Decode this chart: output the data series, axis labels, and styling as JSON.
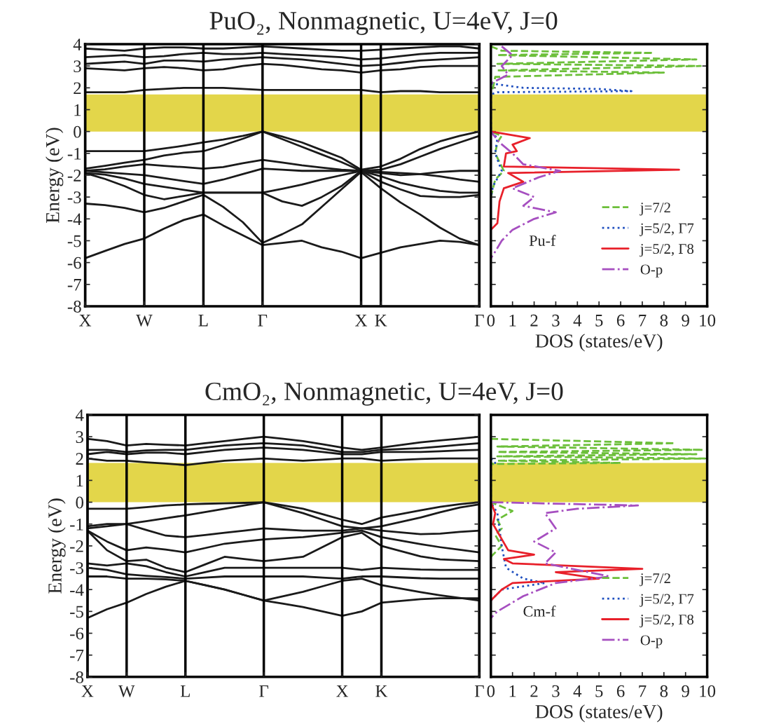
{
  "chart_data": [
    {
      "type": "line",
      "title": "PuO₂, Nonmagnetic, U=4eV, J=0",
      "ylabel": "Energy (eV)",
      "legend": false,
      "grid": "x",
      "categories": [
        "X",
        null,
        null,
        "W",
        null,
        null,
        "L",
        null,
        null,
        "Γ",
        null,
        null,
        null,
        null,
        "X",
        "K",
        null,
        null,
        null,
        null,
        "Γ"
      ],
      "ylim": [
        -8,
        4
      ],
      "yticks": [
        -8,
        -7,
        -6,
        -5,
        -4,
        -3,
        -2,
        -1,
        0,
        1,
        2,
        3,
        4
      ],
      "bands": [
        {
          "axis": "y",
          "from": 0,
          "to": 1.7,
          "color": "#e3d64a"
        }
      ],
      "series": [
        {
          "color": "#1a1a1a",
          "values": [
            -0.9,
            -0.9,
            -0.9,
            -0.9,
            -0.78,
            -0.65,
            -0.5,
            -0.37,
            -0.2,
            0,
            -0.23,
            -0.5,
            -0.85,
            -1.2,
            -1.75,
            -1.6,
            -1.25,
            -0.8,
            -0.45,
            -0.2,
            0
          ]
        },
        {
          "color": "#1a1a1a",
          "values": [
            -1.7,
            -1.57,
            -1.43,
            -1.3,
            -1.1,
            -0.97,
            -0.9,
            -0.63,
            -0.33,
            0,
            -0.35,
            -0.7,
            -1.05,
            -1.4,
            -1.8,
            -1.75,
            -1.5,
            -1.15,
            -0.8,
            -0.5,
            -0.2
          ]
        },
        {
          "color": "#1a1a1a",
          "values": [
            -1.8,
            -1.73,
            -1.6,
            -1.5,
            -1.57,
            -1.63,
            -1.7,
            -1.63,
            -1.45,
            -1.3,
            -1.42,
            -1.55,
            -1.65,
            -1.75,
            -1.8,
            -1.9,
            -2.0,
            -1.95,
            -1.85,
            -1.8,
            -1.8
          ]
        },
        {
          "color": "#1a1a1a",
          "values": [
            -1.8,
            -1.87,
            -1.93,
            -2.0,
            -2.13,
            -2.27,
            -2.4,
            -2.2,
            -1.95,
            -1.7,
            -1.75,
            -1.8,
            -1.8,
            -1.8,
            -1.8,
            -1.85,
            -1.9,
            -1.95,
            -2.05,
            -2.2,
            -2.3
          ]
        },
        {
          "color": "#1a1a1a",
          "values": [
            -1.9,
            -1.97,
            -2.15,
            -2.4,
            -2.53,
            -2.67,
            -2.8,
            -2.8,
            -2.8,
            -2.8,
            -2.62,
            -2.43,
            -2.2,
            -2.0,
            -1.8,
            -2.05,
            -2.35,
            -2.55,
            -2.72,
            -2.8,
            -2.8
          ]
        },
        {
          "color": "#1a1a1a",
          "values": [
            -1.9,
            -2.17,
            -2.5,
            -2.9,
            -3.1,
            -2.95,
            -2.8,
            -2.8,
            -2.8,
            -2.8,
            -3.2,
            -3.4,
            -3.0,
            -2.5,
            -1.8,
            -2.3,
            -2.65,
            -2.95,
            -3.0,
            -3.0,
            -2.9
          ]
        },
        {
          "color": "#1a1a1a",
          "values": [
            -3.3,
            -3.37,
            -3.5,
            -3.7,
            -3.5,
            -3.2,
            -2.9,
            -3.45,
            -4.15,
            -5.1,
            -4.7,
            -4.25,
            -3.45,
            -2.65,
            -1.85,
            -2.6,
            -3.25,
            -3.8,
            -4.4,
            -4.9,
            -5.2
          ]
        },
        {
          "color": "#1a1a1a",
          "values": [
            -5.8,
            -5.47,
            -5.15,
            -4.9,
            -4.45,
            -4.05,
            -3.8,
            -4.3,
            -4.75,
            -5.2,
            -5.1,
            -5.0,
            -5.3,
            -5.5,
            -5.8,
            -5.55,
            -5.3,
            -5.15,
            -5.0,
            -5.05,
            -5.2
          ]
        },
        {
          "color": "#1a1a1a",
          "values": [
            1.8,
            1.8,
            1.8,
            1.9,
            1.95,
            2.0,
            2.0,
            2.0,
            1.95,
            1.9,
            1.9,
            1.9,
            1.9,
            1.9,
            1.9,
            1.8,
            1.85,
            1.85,
            1.8,
            1.8,
            1.8
          ]
        },
        {
          "color": "#1a1a1a",
          "values": [
            2.9,
            2.85,
            2.8,
            2.9,
            2.95,
            2.9,
            2.8,
            2.85,
            3.0,
            3.1,
            3.05,
            2.95,
            2.85,
            2.8,
            2.7,
            2.8,
            2.85,
            2.95,
            3.0,
            3.0,
            3.0
          ]
        },
        {
          "color": "#1a1a1a",
          "values": [
            3.1,
            3.15,
            3.2,
            3.1,
            3.25,
            3.25,
            3.2,
            3.3,
            3.35,
            3.4,
            3.35,
            3.3,
            3.2,
            3.1,
            3.0,
            3.05,
            3.15,
            3.25,
            3.3,
            3.35,
            3.4
          ]
        },
        {
          "color": "#1a1a1a",
          "values": [
            3.4,
            3.45,
            3.5,
            3.4,
            3.45,
            3.55,
            3.6,
            3.55,
            3.55,
            3.6,
            3.55,
            3.5,
            3.45,
            3.4,
            3.3,
            3.35,
            3.45,
            3.55,
            3.6,
            3.6,
            3.6
          ]
        },
        {
          "color": "#1a1a1a",
          "values": [
            3.8,
            3.75,
            3.7,
            3.8,
            3.85,
            3.85,
            3.8,
            3.8,
            3.85,
            3.9,
            3.85,
            3.8,
            3.75,
            3.7,
            3.7,
            3.75,
            3.8,
            3.85,
            3.9,
            3.9,
            3.8
          ]
        }
      ]
    },
    {
      "type": "line",
      "xlabel": "DOS (states/eV)",
      "legend": "bottom right",
      "grid": false,
      "tick_labels": "x",
      "annotations": [
        "Pu-f"
      ],
      "xlim": [
        0,
        10
      ],
      "xticks": [
        0,
        1,
        2,
        3,
        4,
        5,
        6,
        7,
        8,
        9,
        10
      ],
      "ylim": [
        -8,
        4
      ],
      "yticks": [
        -8,
        -7,
        -6,
        -5,
        -4,
        -3,
        -2,
        -1,
        0,
        1,
        2,
        3,
        4
      ],
      "bands": [
        {
          "axis": "y",
          "from": 0,
          "to": 1.7,
          "color": "#e3d64a"
        }
      ],
      "series": [
        {
          "name": "j=7/2",
          "color": "#6cbf3a",
          "line_style": "dashed",
          "x": [
            0,
            0.5,
            7.5,
            0.3,
            9.5,
            0.3,
            9.7,
            0.3,
            8,
            0.2,
            0.1,
            0,
            0,
            0.5,
            0.3,
            0.2,
            0.6,
            0.2,
            0
          ],
          "values": [
            3.9,
            3.7,
            3.6,
            3.5,
            3.3,
            3.1,
            3.0,
            2.8,
            2.7,
            2.5,
            2.0,
            1.8,
            0,
            -0.2,
            -0.5,
            -1.0,
            -1.8,
            -2.2,
            -3
          ]
        },
        {
          "name": "j=5/2, Γ7",
          "color": "#1f4fbf",
          "line_style": "dotted",
          "x": [
            0,
            1.5,
            5,
            6.5,
            0.3,
            0,
            0,
            0.3,
            0.2,
            0.5,
            0.1,
            0
          ],
          "values": [
            2.2,
            2.0,
            1.95,
            1.85,
            1.8,
            1.7,
            0,
            -0.3,
            -1.0,
            -1.8,
            -2.5,
            -3
          ]
        },
        {
          "name": "j=5/2, Γ8",
          "color": "#e8202a",
          "line_style": "solid",
          "x": [
            0,
            1.8,
            1.0,
            1.2,
            0.7,
            0.6,
            8.7,
            0.8,
            1.5,
            0.6,
            0.4,
            0.3,
            0
          ],
          "values": [
            0,
            -0.3,
            -0.6,
            -0.9,
            -1.0,
            -1.6,
            -1.75,
            -1.9,
            -2.3,
            -2.6,
            -3.2,
            -4.2,
            -4.5
          ]
        },
        {
          "name": "O-p",
          "color": "#a64fc0",
          "line_style": "dashdot",
          "x": [
            0.5,
            1.0,
            0.5,
            0.8,
            0,
            0,
            0.4,
            1.0,
            1.5,
            3.2,
            2.2,
            1.0,
            2.0,
            1.5,
            3.0,
            2.0,
            1.0,
            0.5,
            0.2,
            0
          ],
          "values": [
            3.9,
            3.5,
            3.0,
            2.6,
            2.2,
            0,
            -0.5,
            -1.0,
            -1.5,
            -1.8,
            -2.1,
            -2.6,
            -3.0,
            -3.4,
            -3.7,
            -4.0,
            -4.5,
            -5.0,
            -5.5,
            -5.8
          ]
        }
      ]
    },
    {
      "type": "line",
      "title": "CmO₂, Nonmagnetic, U=4eV, J=0",
      "ylabel": "Energy (eV)",
      "legend": false,
      "grid": "x",
      "categories": [
        "X",
        null,
        "W",
        null,
        null,
        "L",
        null,
        null,
        null,
        "Γ",
        null,
        null,
        null,
        "X",
        null,
        "K",
        null,
        null,
        null,
        null,
        "Γ"
      ],
      "ylim": [
        -8,
        4
      ],
      "yticks": [
        -8,
        -7,
        -6,
        -5,
        -4,
        -3,
        -2,
        -1,
        0,
        1,
        2,
        3,
        4
      ],
      "bands": [
        {
          "axis": "y",
          "from": 0,
          "to": 1.8,
          "color": "#e3d64a"
        }
      ],
      "series": [
        {
          "color": "#1a1a1a",
          "values": [
            2.0,
            1.9,
            1.9,
            1.83,
            1.77,
            1.7,
            1.8,
            1.9,
            1.95,
            2.0,
            1.95,
            1.9,
            1.95,
            2.0,
            2.0,
            1.9,
            1.94,
            1.98,
            2.0,
            2.0,
            2.0
          ]
        },
        {
          "color": "#1a1a1a",
          "values": [
            2.2,
            2.3,
            2.2,
            2.27,
            2.27,
            2.2,
            2.3,
            2.4,
            2.45,
            2.5,
            2.45,
            2.4,
            2.3,
            2.2,
            2.2,
            2.3,
            2.3,
            2.3,
            2.33,
            2.37,
            2.4
          ]
        },
        {
          "color": "#1a1a1a",
          "values": [
            2.4,
            2.4,
            2.3,
            2.37,
            2.4,
            2.4,
            2.5,
            2.6,
            2.65,
            2.7,
            2.65,
            2.6,
            2.45,
            2.3,
            2.3,
            2.4,
            2.44,
            2.48,
            2.55,
            2.63,
            2.7
          ]
        },
        {
          "color": "#1a1a1a",
          "values": [
            2.9,
            2.8,
            2.6,
            2.67,
            2.63,
            2.6,
            2.7,
            2.8,
            2.9,
            3.0,
            2.9,
            2.8,
            2.65,
            2.5,
            2.4,
            2.5,
            2.62,
            2.74,
            2.83,
            2.91,
            3.0
          ]
        },
        {
          "color": "#1a1a1a",
          "values": [
            -0.3,
            -0.3,
            -0.3,
            -0.23,
            -0.15,
            -0.1,
            -0.07,
            -0.05,
            -0.03,
            0,
            -0.15,
            -0.3,
            -0.55,
            -0.8,
            -1.0,
            -0.7,
            -0.54,
            -0.37,
            -0.21,
            -0.09,
            0
          ]
        },
        {
          "color": "#1a1a1a",
          "values": [
            -1.1,
            -1.0,
            -1.0,
            -0.87,
            -0.73,
            -0.6,
            -0.45,
            -0.3,
            -0.15,
            0,
            -0.25,
            -0.5,
            -0.8,
            -1.1,
            -1.2,
            -1.1,
            -0.9,
            -0.7,
            -0.46,
            -0.24,
            -0.1
          ]
        },
        {
          "color": "#1a1a1a",
          "values": [
            -1.2,
            -1.1,
            -1.0,
            -1.27,
            -1.53,
            -1.6,
            -1.5,
            -1.4,
            -1.3,
            -1.2,
            -1.25,
            -1.3,
            -1.3,
            -1.3,
            -1.2,
            -1.3,
            -1.38,
            -1.46,
            -1.44,
            -1.36,
            -1.3
          ]
        },
        {
          "color": "#1a1a1a",
          "values": [
            -1.3,
            -1.8,
            -2.2,
            -2.07,
            -2.17,
            -2.3,
            -2.1,
            -1.9,
            -1.8,
            -1.7,
            -1.65,
            -1.6,
            -1.5,
            -1.4,
            -1.3,
            -1.6,
            -1.76,
            -1.92,
            -2.06,
            -2.18,
            -2.3
          ]
        },
        {
          "color": "#1a1a1a",
          "values": [
            -1.3,
            -2.2,
            -2.7,
            -2.63,
            -3.0,
            -3.2,
            -2.85,
            -2.5,
            -2.6,
            -2.7,
            -2.6,
            -2.5,
            -2.05,
            -1.6,
            -1.4,
            -2.0,
            -2.24,
            -2.48,
            -2.62,
            -2.66,
            -2.7
          ]
        },
        {
          "color": "#1a1a1a",
          "values": [
            -2.8,
            -2.9,
            -2.8,
            -2.93,
            -3.2,
            -3.4,
            -3.2,
            -3.0,
            -3.0,
            -3.0,
            -3.0,
            -3.0,
            -3.0,
            -3.0,
            -3.1,
            -3.0,
            -3.04,
            -3.08,
            -3.1,
            -3.1,
            -3.1
          ]
        },
        {
          "color": "#1a1a1a",
          "values": [
            -3.0,
            -3.1,
            -3.3,
            -3.37,
            -3.43,
            -3.5,
            -3.45,
            -3.4,
            -3.4,
            -3.4,
            -3.4,
            -3.4,
            -3.45,
            -3.5,
            -3.4,
            -3.4,
            -3.44,
            -3.48,
            -3.5,
            -3.5,
            -3.5
          ]
        },
        {
          "color": "#1a1a1a",
          "values": [
            -3.4,
            -3.4,
            -3.5,
            -3.5,
            -3.53,
            -3.6,
            -3.8,
            -4.0,
            -4.25,
            -4.5,
            -4.3,
            -4.1,
            -3.85,
            -3.6,
            -3.5,
            -3.8,
            -3.96,
            -4.12,
            -4.26,
            -4.38,
            -4.5
          ]
        },
        {
          "color": "#1a1a1a",
          "values": [
            -5.3,
            -4.9,
            -4.6,
            -4.2,
            -3.87,
            -3.6,
            -3.8,
            -4.0,
            -4.25,
            -4.5,
            -4.65,
            -4.8,
            -5.0,
            -5.2,
            -5.0,
            -4.6,
            -4.52,
            -4.44,
            -4.4,
            -4.4,
            -4.4
          ]
        }
      ]
    },
    {
      "type": "line",
      "xlabel": "DOS (states/eV)",
      "legend": "bottom right",
      "grid": false,
      "tick_labels": "x",
      "annotations": [
        "Cm-f"
      ],
      "xlim": [
        0,
        10
      ],
      "xticks": [
        0,
        1,
        2,
        3,
        4,
        5,
        6,
        7,
        8,
        9,
        10
      ],
      "ylim": [
        -8,
        4
      ],
      "yticks": [
        -8,
        -7,
        -6,
        -5,
        -4,
        -3,
        -2,
        -1,
        0,
        1,
        2,
        3,
        4
      ],
      "bands": [
        {
          "axis": "y",
          "from": 0,
          "to": 1.8,
          "color": "#e3d64a"
        }
      ],
      "series": [
        {
          "name": "j=7/2",
          "color": "#6cbf3a",
          "line_style": "dashed",
          "x": [
            0,
            8.5,
            0.3,
            9.8,
            0.3,
            9.5,
            0.3,
            9.9,
            0.3,
            6,
            0.1,
            0,
            0,
            1.0,
            0.3,
            0.5,
            0.2,
            0.5,
            0
          ],
          "values": [
            2.9,
            2.7,
            2.55,
            2.4,
            2.3,
            2.2,
            2.1,
            2.0,
            1.9,
            1.8,
            1.75,
            1.8,
            0,
            -0.4,
            -0.8,
            -1.2,
            -1.5,
            -2.0,
            -2.5
          ]
        },
        {
          "name": "j=5/2, Γ7",
          "color": "#1f4fbf",
          "line_style": "dotted",
          "x": [
            0,
            0.2,
            0,
            0,
            0.3,
            0.5,
            0.7,
            1.5,
            2.5,
            0.5,
            0
          ],
          "values": [
            2.0,
            1.8,
            1.75,
            0,
            -0.5,
            -2.0,
            -3.0,
            -3.5,
            -3.7,
            -4.0,
            -4.5
          ]
        },
        {
          "name": "j=5/2, Γ8",
          "color": "#e8202a",
          "line_style": "solid",
          "x": [
            0,
            0.2,
            0.1,
            0.8,
            2.0,
            0.6,
            1.0,
            7.0,
            3.0,
            5.0,
            1.0,
            0.5,
            0
          ],
          "values": [
            0,
            -0.5,
            -1.0,
            -2.2,
            -2.4,
            -2.6,
            -2.8,
            -3.05,
            -3.2,
            -3.5,
            -3.7,
            -4.0,
            -4.5
          ]
        },
        {
          "name": "O-p",
          "color": "#a64fc0",
          "line_style": "dashdot",
          "x": [
            0,
            6.8,
            4.0,
            2.5,
            3.0,
            2.0,
            3.0,
            2.5,
            5.5,
            3.0,
            1.5,
            0.3,
            0
          ],
          "values": [
            0,
            -0.15,
            -0.3,
            -0.5,
            -1.2,
            -1.8,
            -2.3,
            -2.8,
            -3.4,
            -3.7,
            -4.3,
            -5.0,
            -5.3
          ]
        }
      ]
    }
  ]
}
